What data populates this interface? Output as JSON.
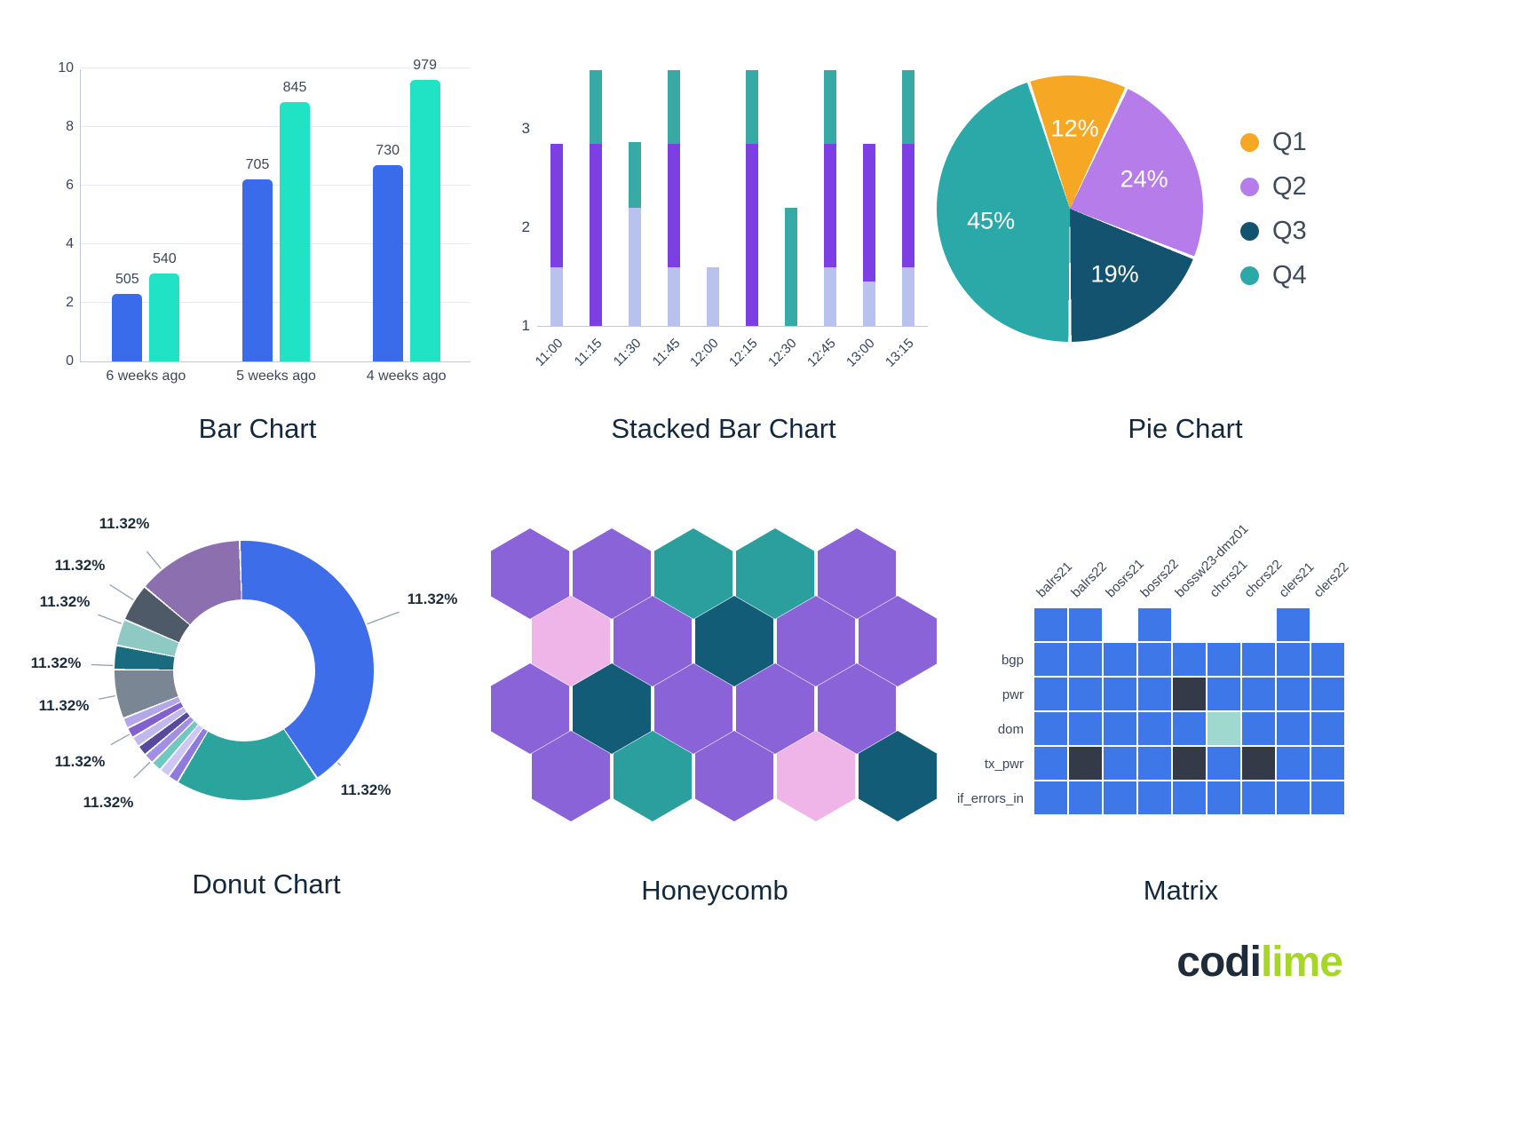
{
  "titles": {
    "bar": "Bar Chart",
    "stacked": "Stacked Bar Chart",
    "pie": "Pie Chart",
    "donut": "Donut Chart",
    "honeycomb": "Honeycomb",
    "matrix": "Matrix"
  },
  "logo": {
    "text_dark": "codi",
    "text_lime": "lime",
    "dark_color": "#1d2b3a",
    "lime_color": "#a6d626"
  },
  "chart_data": [
    {
      "id": "bar",
      "type": "bar",
      "title": "Bar Chart",
      "categories": [
        "6 weeks ago",
        "5 weeks ago",
        "4 weeks ago"
      ],
      "series": [
        {
          "name": "blue",
          "color": "#3a6bea",
          "values": [
            505,
            705,
            730
          ],
          "plotted_heights": [
            2.3,
            6.2,
            6.7
          ]
        },
        {
          "name": "teal",
          "color": "#1fe3c4",
          "values": [
            540,
            845,
            979
          ],
          "plotted_heights": [
            3.0,
            8.85,
            9.6
          ]
        }
      ],
      "ylim": [
        0,
        10
      ],
      "yticks": [
        0,
        2,
        4,
        6,
        8,
        10
      ],
      "grid": true,
      "legend": "none"
    },
    {
      "id": "stacked",
      "type": "bar",
      "variant": "stacked",
      "title": "Stacked Bar Chart",
      "categories": [
        "11:00",
        "11:15",
        "11:30",
        "11:45",
        "12:00",
        "12:15",
        "12:30",
        "12:45",
        "13:00",
        "13:15"
      ],
      "ylim": [
        1,
        3.6
      ],
      "yticks": [
        1,
        2,
        3
      ],
      "baseline": 1,
      "series": [
        {
          "name": "segment-lavender",
          "color": "#b9c2ee",
          "values": [
            0.6,
            0,
            1.2,
            0.6,
            0.6,
            0,
            0,
            0.6,
            0.45,
            0.6
          ]
        },
        {
          "name": "segment-purple",
          "color": "#7c3fe4",
          "values": [
            1.25,
            1.85,
            0,
            1.25,
            0,
            1.85,
            0,
            1.25,
            1.4,
            1.25
          ]
        },
        {
          "name": "segment-teal",
          "color": "#38aaa5",
          "values": [
            0,
            0.75,
            0.67,
            0.75,
            0,
            0.75,
            1.2,
            0.75,
            0,
            0.75
          ]
        }
      ]
    },
    {
      "id": "pie",
      "type": "pie",
      "title": "Pie Chart",
      "start_angle": -18,
      "legend_position": "right",
      "slices": [
        {
          "label": "Q1",
          "value": 12,
          "display": "12%",
          "color": "#f6a723"
        },
        {
          "label": "Q2",
          "value": 24,
          "display": "24%",
          "color": "#b57cea"
        },
        {
          "label": "Q3",
          "value": 19,
          "display": "19%",
          "color": "#14536f"
        },
        {
          "label": "Q4",
          "value": 45,
          "display": "45%",
          "color": "#2ba8a8"
        }
      ]
    },
    {
      "id": "donut",
      "type": "pie",
      "variant": "donut",
      "title": "Donut Chart",
      "label_text": "11.32%",
      "slices": [
        {
          "name": "blue",
          "value": 41,
          "color": "#3d6de9"
        },
        {
          "name": "teal",
          "value": 18,
          "color": "#2aa49c"
        },
        {
          "name": "sliver-1",
          "value": 1.3,
          "color": "#8f7ae0"
        },
        {
          "name": "sliver-2",
          "value": 1.3,
          "color": "#cfc7f3"
        },
        {
          "name": "sliver-3",
          "value": 1.3,
          "color": "#6fc8c2"
        },
        {
          "name": "sliver-4",
          "value": 1.3,
          "color": "#a08fe5"
        },
        {
          "name": "sliver-5",
          "value": 1.3,
          "color": "#574a9e"
        },
        {
          "name": "sliver-6",
          "value": 1.3,
          "color": "#c2b8ee"
        },
        {
          "name": "sliver-7",
          "value": 1.3,
          "color": "#8261cf"
        },
        {
          "name": "sliver-8",
          "value": 1.3,
          "color": "#b3a6e9"
        },
        {
          "name": "gray",
          "value": 6.1,
          "color": "#7a8694"
        },
        {
          "name": "dark-teal",
          "value": 3,
          "color": "#1a6a80"
        },
        {
          "name": "light-teal",
          "value": 3.3,
          "color": "#8ecac3"
        },
        {
          "name": "slate",
          "value": 4.7,
          "color": "#4e5a68"
        },
        {
          "name": "mauve",
          "value": 13.3,
          "color": "#8b6fae"
        }
      ],
      "labels": [
        "11.32%",
        "11.32%",
        "11.32%",
        "11.32%",
        "11.32%",
        "11.32%",
        "11.32%",
        "11.32%",
        "11.32%"
      ]
    },
    {
      "id": "honeycomb",
      "type": "heatmap",
      "variant": "honeycomb",
      "title": "Honeycomb",
      "rows": [
        [
          "purple",
          "purple",
          "teal",
          "teal",
          "purple"
        ],
        [
          "pink",
          "purple",
          "dark",
          "purple",
          "purple"
        ],
        [
          "purple",
          "dark",
          "purple",
          "purple",
          "purple"
        ],
        [
          "purple",
          "teal",
          "purple",
          "pink",
          "dark"
        ]
      ],
      "palette": {
        "purple": "#8a63d9",
        "teal": "#2b9e9e",
        "dark": "#125c78",
        "pink": "#efb5e9"
      }
    },
    {
      "id": "matrix",
      "type": "heatmap",
      "title": "Matrix",
      "columns": [
        "balrs21",
        "balrs22",
        "bosrs21",
        "bosrs22",
        "bossw23-dmz01",
        "chcrs21",
        "chcrs22",
        "clers21",
        "clers22"
      ],
      "row_labels": [
        "",
        "bgp",
        "pwr",
        "dom",
        "tx_pwr",
        "if_errors_in"
      ],
      "cells": [
        [
          "b",
          "b",
          null,
          "b",
          null,
          null,
          null,
          "b",
          null
        ],
        [
          "b",
          "b",
          "b",
          "b",
          "b",
          "b",
          "b",
          "b",
          "b"
        ],
        [
          "b",
          "b",
          "b",
          "b",
          "d",
          "b",
          "b",
          "b",
          "b"
        ],
        [
          "b",
          "b",
          "b",
          "b",
          "b",
          "t",
          "b",
          "b",
          "b"
        ],
        [
          "b",
          "d",
          "b",
          "b",
          "d",
          "b",
          "d",
          "b",
          "b"
        ],
        [
          "b",
          "b",
          "b",
          "b",
          "b",
          "b",
          "b",
          "b",
          "b"
        ]
      ],
      "palette": {
        "b": "#3e78e8",
        "d": "#343a47",
        "t": "#9fd8cf"
      }
    }
  ]
}
